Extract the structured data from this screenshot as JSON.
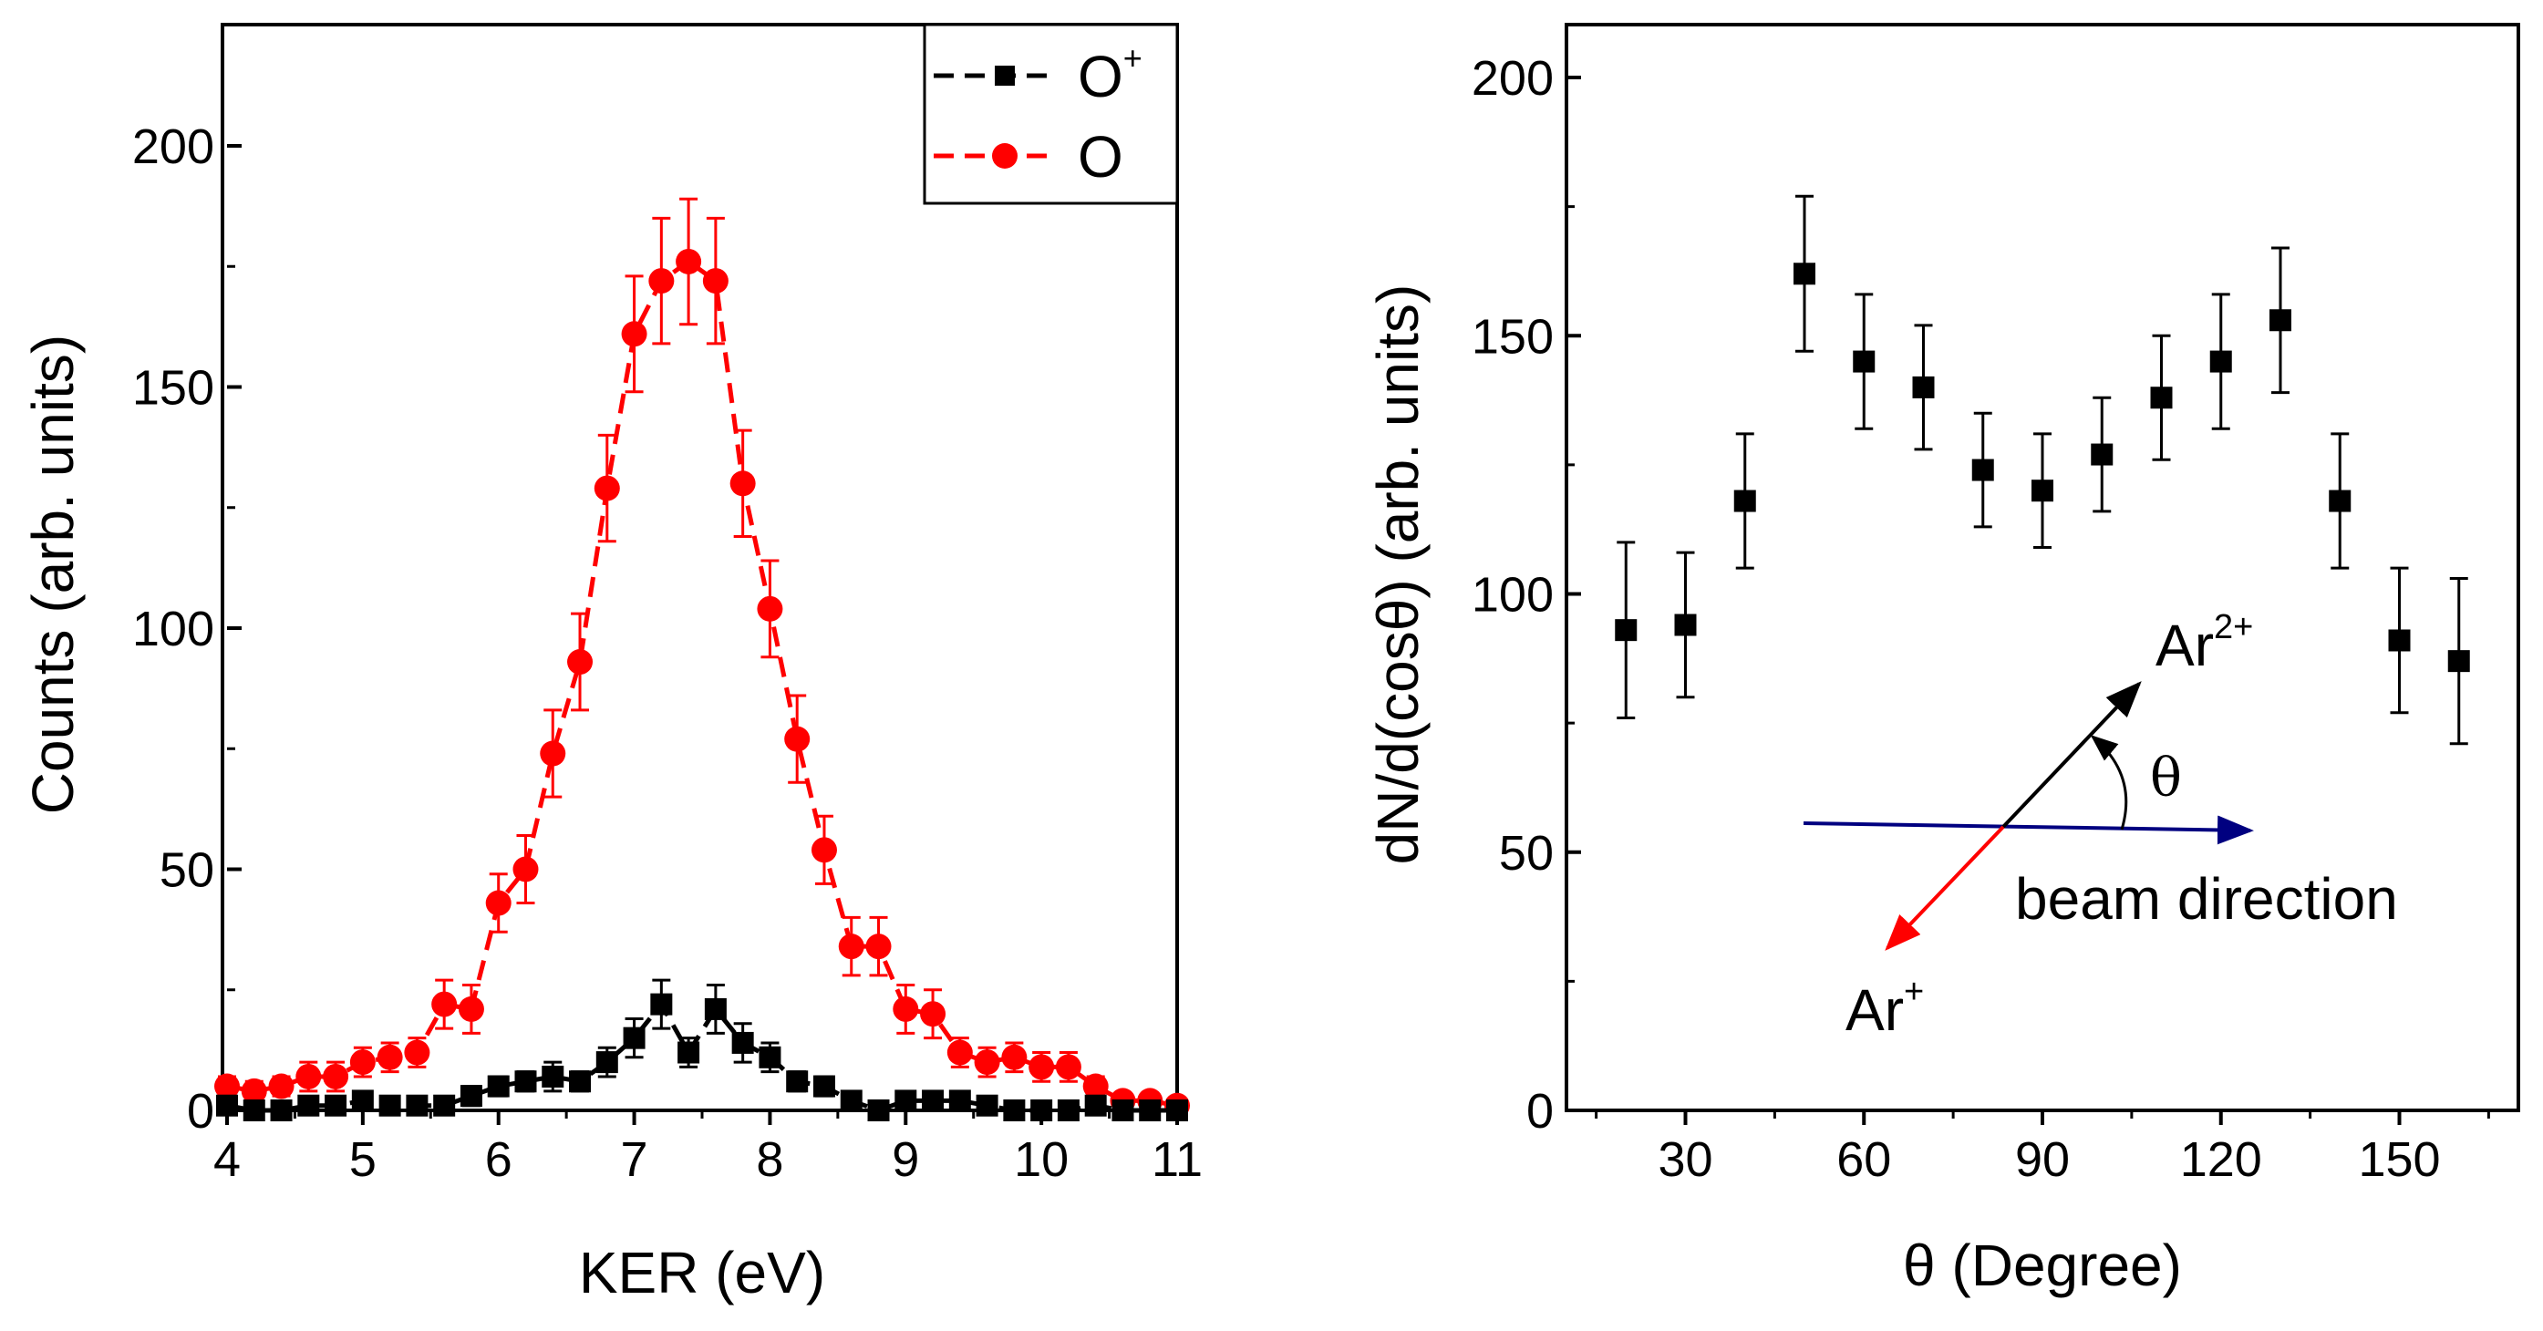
{
  "chart_data": [
    {
      "type": "scatter",
      "xlabel": "KER (eV)",
      "ylabel": "Counts (arb. units)",
      "xlim": [
        4,
        11
      ],
      "ylim": [
        0,
        225
      ],
      "xticks": [
        "4",
        "5",
        "6",
        "7",
        "8",
        "9",
        "10",
        "11"
      ],
      "yticks": [
        "0",
        "50",
        "100",
        "150",
        "200"
      ],
      "legend_position": "top-right",
      "x": [
        4.0,
        4.2,
        4.4,
        4.6,
        4.8,
        5.0,
        5.2,
        5.4,
        5.6,
        5.8,
        6.0,
        6.2,
        6.4,
        6.6,
        6.8,
        7.0,
        7.2,
        7.4,
        7.6,
        7.8,
        8.0,
        8.2,
        8.4,
        8.6,
        8.8,
        9.0,
        9.2,
        9.4,
        9.6,
        9.8,
        10.0,
        10.2,
        10.4,
        10.6,
        10.8,
        11.0
      ],
      "series": [
        {
          "name": "O",
          "name_base": "O",
          "name_sup": "",
          "color": "#ff0000",
          "marker": "circle",
          "values": [
            5,
            4,
            5,
            7,
            7,
            10,
            11,
            12,
            22,
            21,
            43,
            50,
            74,
            93,
            129,
            161,
            172,
            176,
            172,
            130,
            104,
            77,
            54,
            34,
            34,
            21,
            20,
            12,
            10,
            11,
            9,
            9,
            5,
            2,
            2,
            1
          ],
          "errors": [
            2,
            2,
            2,
            3,
            3,
            3,
            3,
            3,
            5,
            5,
            6,
            7,
            9,
            10,
            11,
            12,
            13,
            13,
            13,
            11,
            10,
            9,
            7,
            6,
            6,
            5,
            5,
            3,
            3,
            3,
            3,
            3,
            2,
            1,
            1,
            1
          ]
        },
        {
          "name": "O+",
          "name_base": "O",
          "name_sup": "+",
          "color": "#000000",
          "marker": "square",
          "values": [
            1,
            0,
            0,
            1,
            1,
            2,
            1,
            1,
            1,
            3,
            5,
            6,
            7,
            6,
            10,
            15,
            22,
            12,
            21,
            14,
            11,
            6,
            5,
            2,
            0,
            2,
            2,
            2,
            1,
            0,
            0,
            0,
            1,
            0,
            0,
            0
          ],
          "errors": [
            1,
            0,
            0,
            1,
            1,
            1,
            1,
            1,
            1,
            2,
            2,
            2,
            3,
            2,
            3,
            4,
            5,
            3,
            5,
            4,
            3,
            2,
            2,
            1,
            0,
            1,
            1,
            1,
            1,
            0,
            0,
            0,
            1,
            0,
            0,
            0
          ]
        }
      ]
    },
    {
      "type": "scatter",
      "xlabel": "θ (Degree)",
      "ylabel": "dN/d(cosθ) (arb. units)",
      "xlim": [
        10,
        170
      ],
      "ylim": [
        0,
        210
      ],
      "xticks": [
        "30",
        "60",
        "90",
        "120",
        "150"
      ],
      "yticks": [
        "0",
        "50",
        "100",
        "150",
        "200"
      ],
      "x": [
        20,
        30,
        40,
        50,
        60,
        70,
        80,
        90,
        100,
        110,
        120,
        130,
        140,
        150,
        160
      ],
      "series": [
        {
          "name": "dN/d(cosθ)",
          "color": "#000000",
          "marker": "square",
          "values": [
            93,
            94,
            118,
            162,
            145,
            140,
            124,
            120,
            127,
            138,
            145,
            153,
            118,
            91,
            87
          ],
          "errors": [
            17,
            14,
            13,
            15,
            13,
            12,
            11,
            11,
            11,
            12,
            13,
            14,
            13,
            14,
            16
          ]
        }
      ],
      "annotations": {
        "ar2_base": "Ar",
        "ar2_sup": "2+",
        "ar1_base": "Ar",
        "ar1_sup": "+",
        "theta": "θ",
        "beam": "beam direction",
        "beam_color": "#000080",
        "ar1_color": "#ff0000"
      }
    }
  ]
}
